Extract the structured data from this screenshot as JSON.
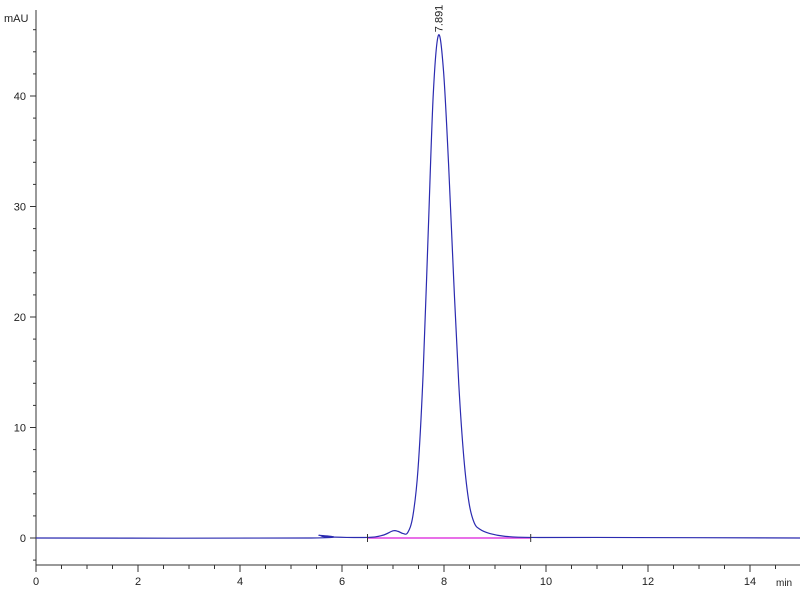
{
  "chart_data": {
    "type": "line",
    "title": "",
    "xlabel": "min",
    "ylabel": "mAU",
    "xlim": [
      0,
      15
    ],
    "ylim": [
      -2.5,
      47
    ],
    "x_ticks": [
      0,
      2,
      4,
      6,
      8,
      10,
      12,
      14
    ],
    "y_ticks": [
      0,
      10,
      20,
      30,
      40
    ],
    "grid": false,
    "series": [
      {
        "color": "#2b2bb0",
        "x": [
          0,
          5.4,
          5.55,
          5.7,
          6.5,
          6.8,
          7.0,
          7.1,
          7.2,
          7.29,
          7.39,
          7.49,
          7.59,
          7.69,
          7.79,
          7.891,
          7.99,
          8.09,
          8.19,
          8.29,
          8.39,
          8.49,
          8.59,
          8.7,
          8.9,
          9.2,
          9.7,
          11,
          15
        ],
        "y": [
          0,
          0,
          0.25,
          0.1,
          0.05,
          0.25,
          0.65,
          0.6,
          0.4,
          0.5,
          2.0,
          6.2,
          14.8,
          27.6,
          40.2,
          45.5,
          42.3,
          33.8,
          23.4,
          13.9,
          7.2,
          3.2,
          1.4,
          0.8,
          0.4,
          0.15,
          0.05,
          0.05,
          0
        ]
      }
    ],
    "integration_baseline": {
      "color": "#e040e0",
      "x": [
        6.5,
        9.7
      ],
      "y": [
        0,
        0
      ]
    },
    "annotations": [
      {
        "text": "7.891",
        "x": 7.891,
        "y": 45.5
      }
    ]
  }
}
